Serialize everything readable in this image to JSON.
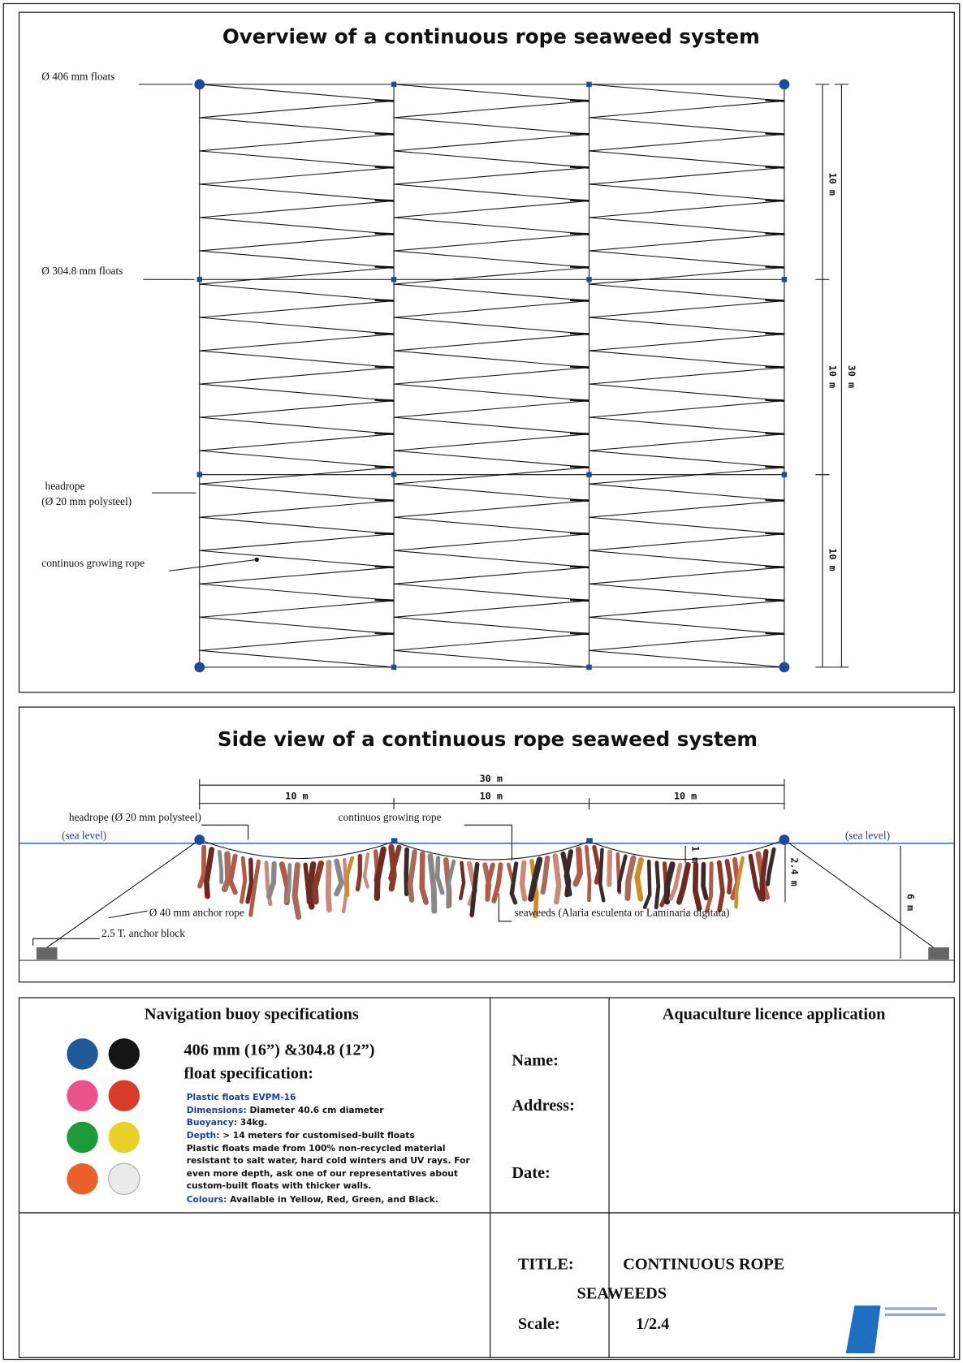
{
  "overview": {
    "title": "Overview of a continuous rope seaweed system",
    "labels": {
      "float_large": "Ø 406 mm floats",
      "float_small": "Ø 304.8 mm floats",
      "headrope": "headrope",
      "headrope_spec": "(Ø 20 mm polysteel)",
      "growing_rope": "continuos growing rope"
    },
    "dimensions": [
      "10 m",
      "10 m",
      "10 m"
    ],
    "total": "30 m"
  },
  "side_view": {
    "title": "Side view of a continuous rope seaweed system",
    "total": "30 m",
    "dimensions": [
      "10 m",
      "10 m",
      "10 m"
    ],
    "headrope": "headrope (Ø 20 mm polysteel)",
    "growing_rope": "continuos growing rope",
    "sea_level": [
      "(sea level)",
      "(sea level)"
    ],
    "sag": "1 m",
    "depth": "2.4 m",
    "water_depth": "6 m",
    "anchor_rope": "Ø 40 mm anchor rope",
    "anchor_block": "2.5 T. anchor block",
    "seaweeds": "seaweeds (Alaria esculenta or Laminaria digitata)"
  },
  "buoy_spec": {
    "title": "Navigation buoy specifications",
    "heading": [
      "406 mm (16”) &304.8 (12”)",
      "float specification:"
    ],
    "product": "Plastic floats EVPM-16",
    "lines": [
      {
        "label": "Dimensions:",
        "text": " Diameter 40.6 cm diameter"
      },
      {
        "label": "Buoyancy:",
        "text": " 34kg."
      },
      {
        "label": "Depth:",
        "text": " > 14 meters for customised-built floats"
      }
    ],
    "paragraph": [
      "Plastic floats made from 100% non-recycled material",
      "resistant to salt water, hard cold winters and UV rays. For",
      "even more depth, ask one of our representatives about",
      "custom-built floats with thicker walls."
    ],
    "colours": {
      "label": "Colours:",
      "text": " Available in Yellow, Red, Green, and Black."
    }
  },
  "licence": {
    "title": "Aquaculture licence application",
    "fields": [
      "Name:",
      "Address:",
      "Date:"
    ],
    "title_label": "TITLE:",
    "title_lines": [
      "CONTINUOUS ROPE",
      "SEAWEEDS"
    ],
    "scale_label": "Scale:",
    "scale": "1/2.4"
  }
}
